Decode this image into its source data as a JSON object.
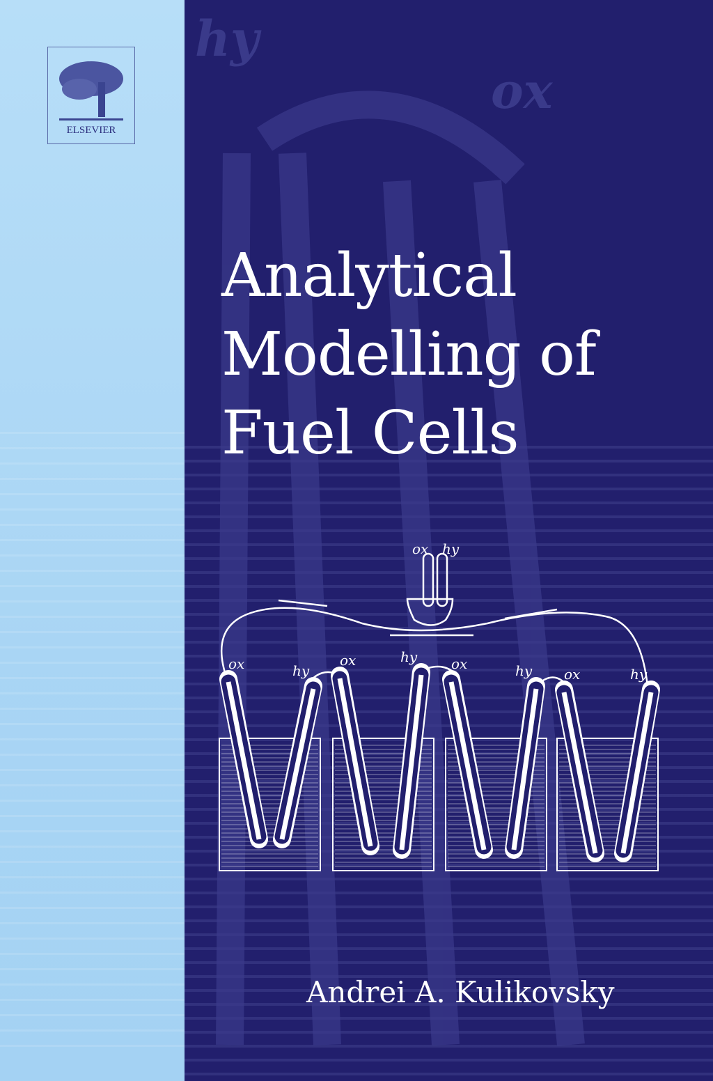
{
  "publisher": {
    "name": "ELSEVIER",
    "icon": "elsevier-tree-logo"
  },
  "background_labels": [
    "hy",
    "ox"
  ],
  "title_lines": [
    "Analytical",
    "Modelling of",
    "Fuel Cells"
  ],
  "author": "Andrei A. Kulikovsky",
  "illustration": {
    "top_labels": [
      "ox",
      "hy"
    ],
    "cell_labels": [
      "ox",
      "hy",
      "ox",
      "hy",
      "ox",
      "hy",
      "ox",
      "hy"
    ]
  },
  "colors": {
    "left_panel": "#b7def8",
    "right_panel": "#221f6d",
    "text": "#ffffff"
  }
}
